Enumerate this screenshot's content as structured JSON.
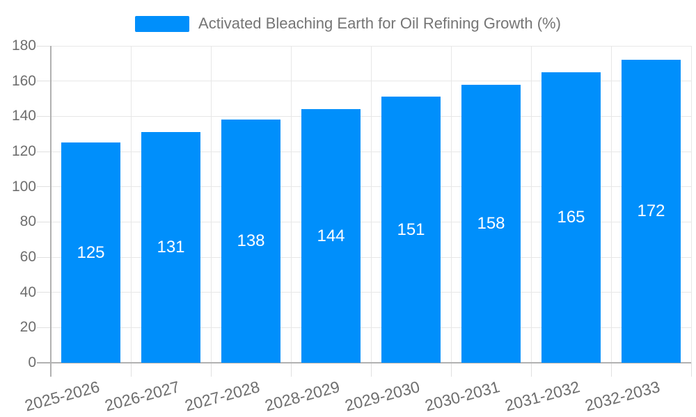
{
  "legend": {
    "label": "Activated Bleaching Earth for Oil Refining Growth (%)",
    "swatch_color": "#008FFB"
  },
  "chart_data": {
    "type": "bar",
    "title": "Activated Bleaching Earth for Oil Refining Growth (%)",
    "series_name": "Activated Bleaching Earth for Oil Refining Growth (%)",
    "categories": [
      "2025-2026",
      "2026-2027",
      "2027-2028",
      "2028-2029",
      "2029-2030",
      "2030-2031",
      "2031-2032",
      "2032-2033"
    ],
    "values": [
      125,
      131,
      138,
      144,
      151,
      158,
      165,
      172
    ],
    "bar_labels": [
      "125",
      "131",
      "138",
      "144",
      "151",
      "158",
      "165",
      "172"
    ],
    "xlabel": "",
    "ylabel": "",
    "ylim": [
      0,
      180
    ],
    "ytick_step": 20,
    "yticks": [
      0,
      20,
      40,
      60,
      80,
      100,
      120,
      140,
      160,
      180
    ],
    "grid": true,
    "legend_position": "top-center",
    "x_label_rotation_deg": -15,
    "colors": {
      "bar": "#008FFB",
      "bar_label": "#ffffff",
      "gridline": "#e7e7e7",
      "axis_line": "#b1b1b1",
      "axis_label": "#6e6e6e",
      "legend_text": "#757575",
      "background": "#ffffff"
    }
  }
}
